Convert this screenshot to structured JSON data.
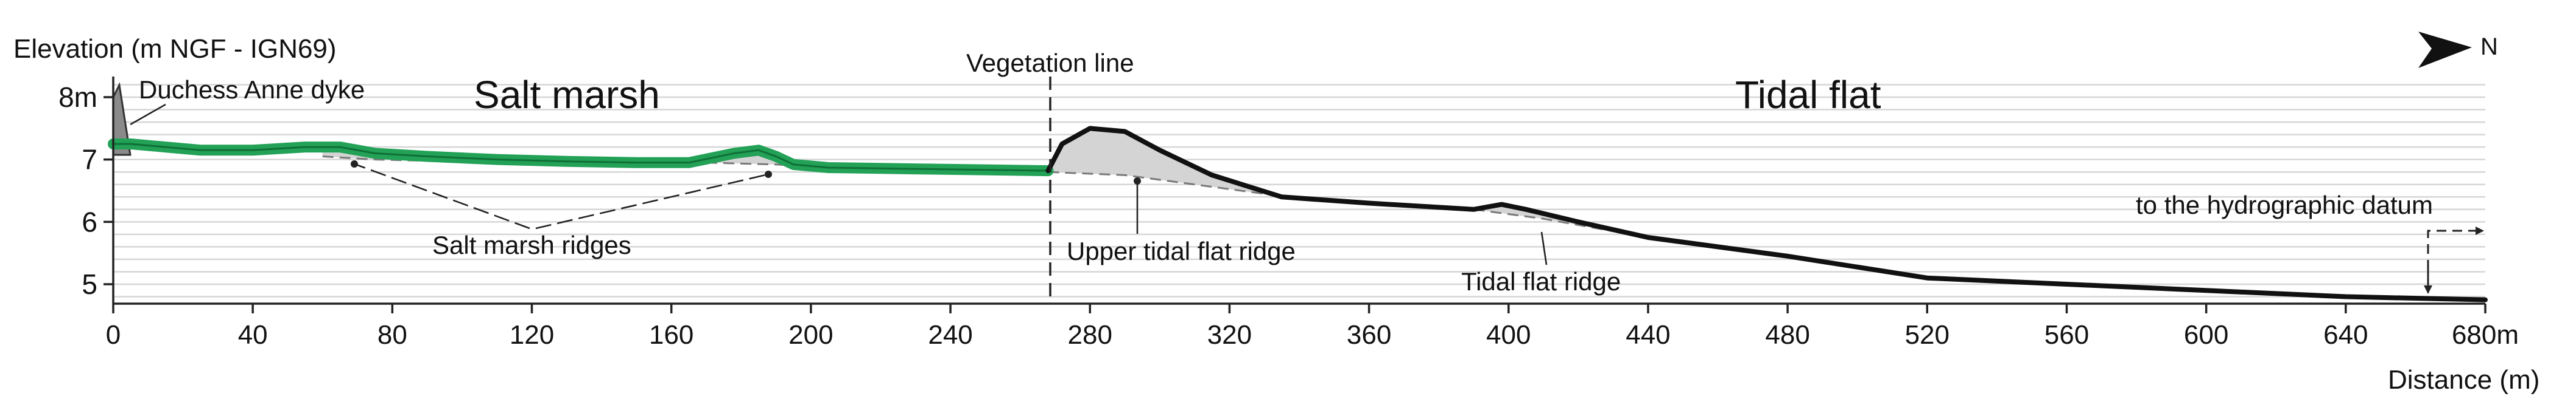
{
  "y_axis_title": "Elevation (m NGF - IGN69)",
  "x_axis_title": "Distance (m)",
  "north_label": "N",
  "zones": {
    "salt_marsh": "Salt marsh",
    "tidal_flat": "Tidal flat"
  },
  "annotations": {
    "dyke": "Duchess Anne dyke",
    "vegetation_line": "Vegetation line",
    "salt_marsh_ridges": "Salt marsh ridges",
    "upper_tidal_flat_ridge": "Upper tidal flat ridge",
    "tidal_flat_ridge": "Tidal flat ridge",
    "hydrographic_datum": "to the hydrographic datum"
  },
  "colors": {
    "marsh_profile": "#22a157",
    "flat_profile": "#111111",
    "ridge_fill": "#d4d4d4",
    "grid": "#d6d6d6"
  },
  "chart_data": {
    "type": "line",
    "x_ticks": [
      "0",
      "40",
      "80",
      "120",
      "160",
      "200",
      "240",
      "280",
      "320",
      "360",
      "400",
      "440",
      "480",
      "520",
      "560",
      "600",
      "640",
      "680m"
    ],
    "y_ticks": [
      "5",
      "6",
      "7",
      "8m"
    ],
    "xlim": [
      0,
      680
    ],
    "ylim": [
      4.6,
      8.5
    ],
    "vegetation_line_x": 268,
    "series": [
      {
        "segment": "salt marsh",
        "x": [
          0,
          5,
          15,
          25,
          40,
          55,
          65,
          75,
          90,
          110,
          130,
          150,
          165,
          178,
          185,
          190,
          195,
          205,
          230,
          268
        ],
        "y": [
          7.25,
          7.25,
          7.2,
          7.15,
          7.15,
          7.2,
          7.2,
          7.1,
          7.05,
          7.0,
          6.97,
          6.95,
          6.95,
          7.1,
          7.15,
          7.05,
          6.92,
          6.87,
          6.85,
          6.82
        ]
      },
      {
        "segment": "tidal flat",
        "x": [
          268,
          272,
          280,
          290,
          300,
          315,
          335,
          360,
          390,
          398,
          405,
          420,
          440,
          480,
          520,
          560,
          600,
          640,
          680
        ],
        "y": [
          6.82,
          7.25,
          7.5,
          7.45,
          7.15,
          6.75,
          6.4,
          6.3,
          6.2,
          6.28,
          6.2,
          6.0,
          5.75,
          5.45,
          5.1,
          5.0,
          4.9,
          4.8,
          4.75
        ]
      }
    ],
    "ridge_bases": [
      {
        "x": [
          268,
          290,
          330
        ],
        "y": [
          6.8,
          6.75,
          6.45
        ]
      },
      {
        "x": [
          390,
          410,
          430
        ],
        "y": [
          6.2,
          6.05,
          5.85
        ]
      },
      {
        "x": [
          60,
          75,
          90
        ],
        "y": [
          7.05,
          7.0,
          6.98
        ]
      },
      {
        "x": [
          170,
          190,
          205
        ],
        "y": [
          6.95,
          6.92,
          6.88
        ]
      }
    ]
  }
}
